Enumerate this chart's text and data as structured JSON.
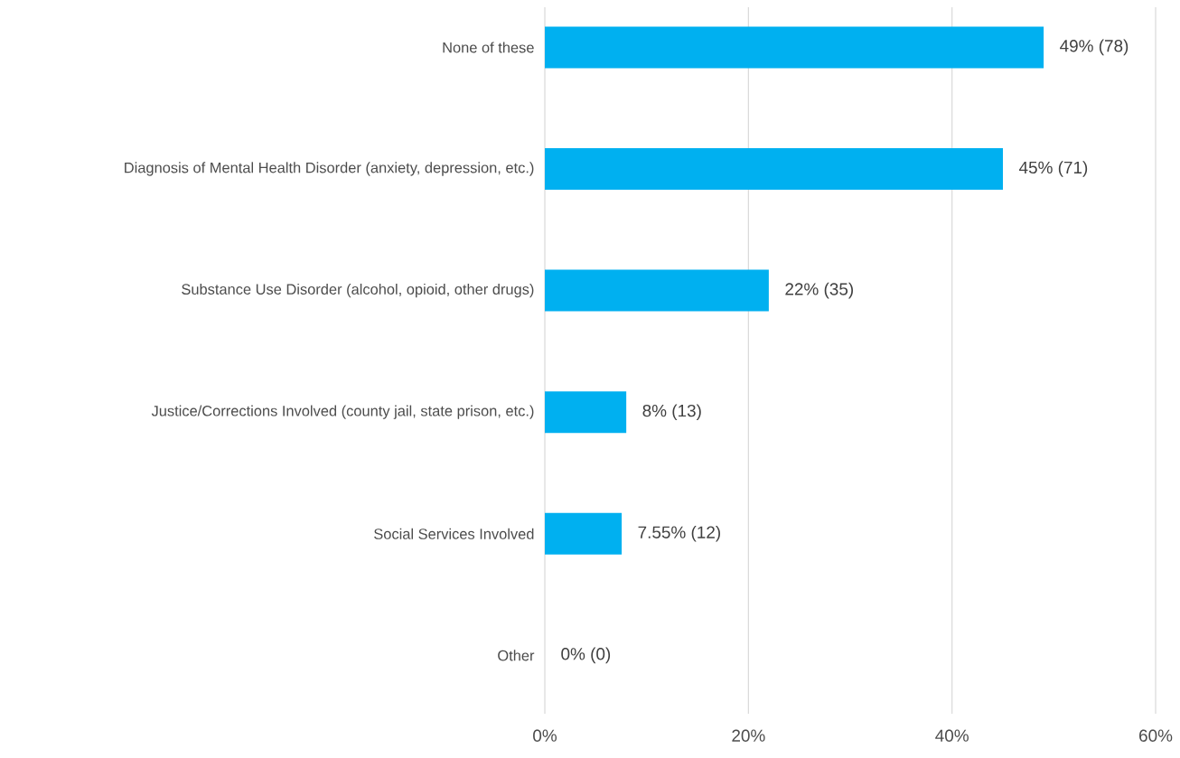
{
  "chart_data": {
    "type": "bar",
    "orientation": "horizontal",
    "categories": [
      "None of these",
      "Diagnosis of Mental Health Disorder (anxiety, depression, etc.)",
      "Substance Use Disorder (alcohol, opioid, other drugs)",
      "Justice/Corrections Involved (county jail, state prison, etc.)",
      "Social Services Involved",
      "Other"
    ],
    "values": [
      49,
      45,
      22,
      8,
      7.55,
      0
    ],
    "value_labels": [
      "49%  (78)",
      "45%  (71)",
      "22%  (35)",
      "8%  (13)",
      "7.55%  (12)",
      "0%  (0)"
    ],
    "color": "#00b0f0",
    "xlim": [
      0,
      60
    ],
    "xticks": [
      {
        "value": 0,
        "label": "0%"
      },
      {
        "value": 20,
        "label": "20%"
      },
      {
        "value": 40,
        "label": "40%"
      },
      {
        "value": 60,
        "label": "60%"
      }
    ],
    "grid": "x"
  }
}
